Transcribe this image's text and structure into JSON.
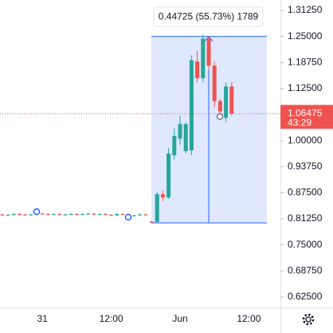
{
  "chart_data": {
    "type": "candlestick",
    "categories": [
      null,
      null,
      null,
      null,
      null,
      null,
      null,
      null,
      "31",
      null,
      null,
      null,
      null,
      null,
      null,
      null,
      null,
      null,
      null,
      null,
      "12:00",
      null,
      null,
      null,
      null,
      null,
      null,
      null,
      null,
      null,
      null,
      null,
      "Jun",
      null,
      null,
      null,
      null,
      null,
      null,
      null,
      null,
      null,
      null,
      null,
      "12:00",
      null,
      null
    ],
    "open": [
      0.822,
      0.823,
      0.821,
      0.822,
      0.824,
      0.823,
      0.822,
      0.823,
      0.825,
      0.824,
      0.823,
      0.824,
      0.822,
      0.823,
      0.824,
      0.823,
      0.824,
      0.825,
      0.823,
      0.824,
      0.822,
      0.821,
      0.824,
      0.823,
      0.82,
      0.821,
      0.823,
      0.806,
      0.8049,
      0.8718,
      0.864,
      0.965,
      1.005,
      0.975,
      0.977,
      1.19,
      1.15,
      1.245,
      1.18,
      1.095,
      1.055,
      1.13,
      null,
      null,
      null,
      null,
      null
    ],
    "high": [
      0.825,
      0.825,
      0.824,
      0.826,
      0.826,
      0.825,
      0.825,
      0.827,
      0.827,
      0.826,
      0.826,
      0.826,
      0.825,
      0.826,
      0.826,
      0.826,
      0.827,
      0.827,
      0.826,
      0.826,
      0.824,
      0.826,
      0.826,
      0.825,
      0.823,
      0.825,
      0.825,
      0.808,
      0.8775,
      0.88,
      0.9826,
      1.0304,
      1.06,
      1.045,
      1.205,
      1.215,
      1.255,
      1.25,
      1.19,
      1.1,
      1.14,
      1.14,
      null,
      null,
      null,
      null,
      null
    ],
    "low": [
      0.82,
      0.819,
      0.819,
      0.82,
      0.821,
      0.82,
      0.82,
      0.821,
      0.822,
      0.821,
      0.821,
      0.82,
      0.82,
      0.821,
      0.821,
      0.821,
      0.822,
      0.821,
      0.821,
      0.82,
      0.819,
      0.819,
      0.821,
      0.818,
      0.818,
      0.819,
      0.82,
      0.802,
      0.80275,
      0.855,
      0.86,
      0.955,
      0.99,
      0.97,
      0.965,
      1.14,
      1.14,
      1.17,
      1.08,
      1.05,
      1.045,
      1.06,
      null,
      null,
      null,
      null,
      null
    ],
    "close": [
      0.823,
      0.821,
      0.822,
      0.824,
      0.823,
      0.822,
      0.823,
      0.825,
      0.824,
      0.823,
      0.824,
      0.822,
      0.823,
      0.824,
      0.823,
      0.824,
      0.825,
      0.823,
      0.824,
      0.822,
      0.821,
      0.824,
      0.823,
      0.82,
      0.821,
      0.823,
      0.822,
      0.804,
      0.8718,
      0.864,
      0.9692,
      1.0113,
      1.0399,
      1.04,
      1.193,
      1.15,
      1.245,
      1.18,
      1.095,
      1.07,
      1.13,
      1.06475,
      null,
      null,
      null,
      null,
      null
    ],
    "up_color": "#26a69a",
    "down_color": "#ef5350",
    "ylim": [
      0.6,
      1.3375
    ],
    "yticks": [
      {
        "value": 0.625,
        "label": "0.62500"
      },
      {
        "value": 0.6875,
        "label": "0.68750"
      },
      {
        "value": 0.75,
        "label": "0.75000"
      },
      {
        "value": 0.8125,
        "label": "0.81250"
      },
      {
        "value": 0.875,
        "label": "0.87500"
      },
      {
        "value": 0.9375,
        "label": "0.93750"
      },
      {
        "value": 1.0,
        "label": "1.00000"
      },
      {
        "value": 1.125,
        "label": "1.12500"
      },
      {
        "value": 1.1875,
        "label": "1.18750"
      },
      {
        "value": 1.25,
        "label": "1.25000"
      },
      {
        "value": 1.3125,
        "label": "1.31250"
      }
    ],
    "current_price": {
      "value": 1.06475,
      "label": "1.06475"
    },
    "countdown": "43:29",
    "measure": {
      "label": "0.44725 (55.73%) 1789",
      "y_from": 0.80275,
      "y_to": 1.25
    }
  }
}
